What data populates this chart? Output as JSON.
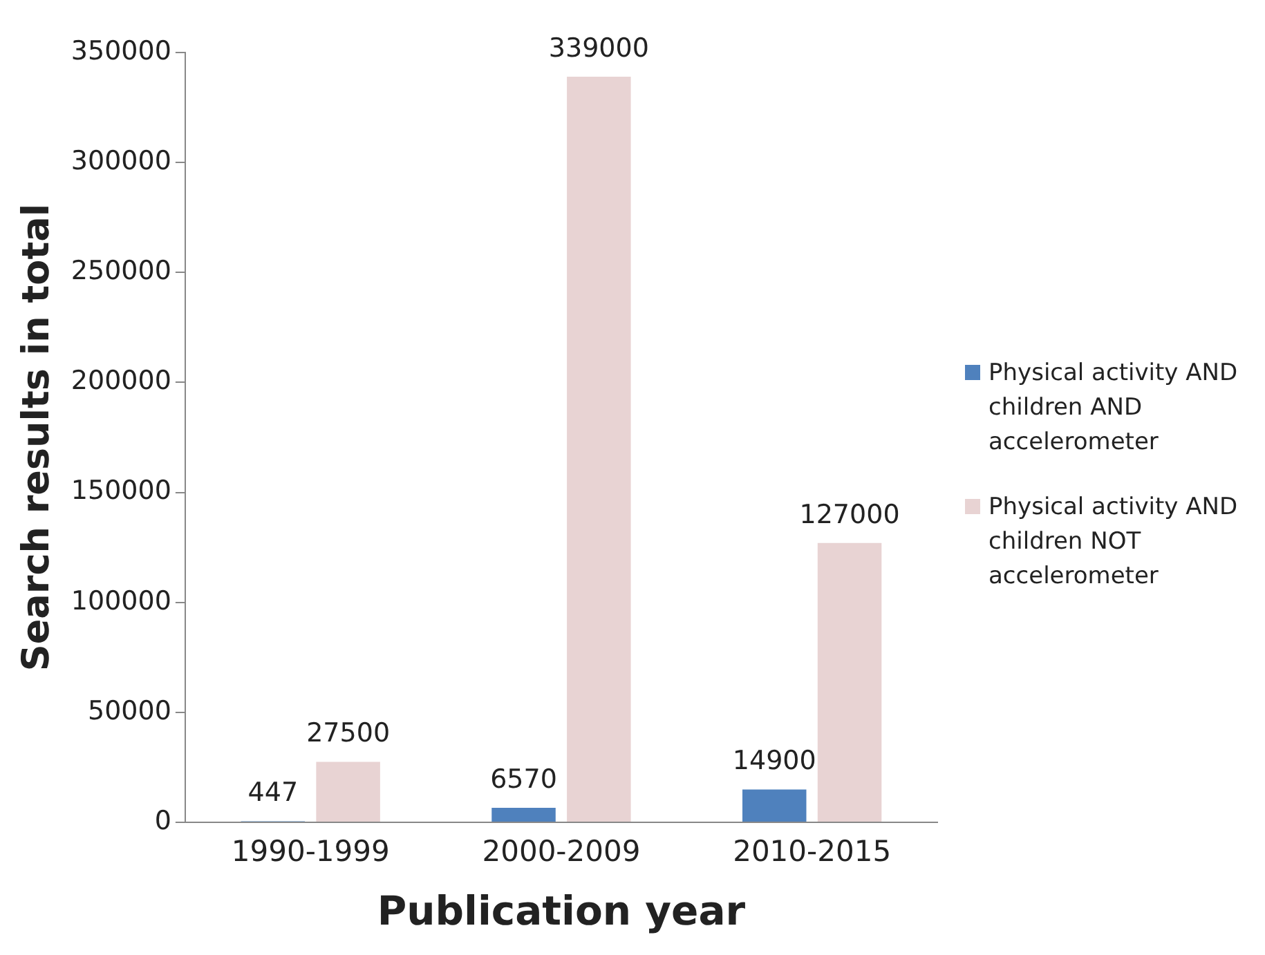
{
  "chart_data": {
    "type": "bar",
    "xlabel": "Publication year",
    "ylabel": "Search results in total",
    "categories": [
      "1990-1999",
      "2000-2009",
      "2010-2015"
    ],
    "series": [
      {
        "name": "Physical activity AND children AND accelerometer",
        "color": "#4f81bd",
        "values": [
          447,
          6570,
          14900
        ]
      },
      {
        "name": "Physical activity AND children NOT accelerometer",
        "color": "#e8d3d3",
        "values": [
          27500,
          339000,
          127000
        ]
      }
    ],
    "ylim": [
      0,
      350000
    ],
    "yticks": [
      0,
      50000,
      100000,
      150000,
      200000,
      250000,
      300000,
      350000
    ],
    "grid": false,
    "legend": "right",
    "data_labels": true
  }
}
